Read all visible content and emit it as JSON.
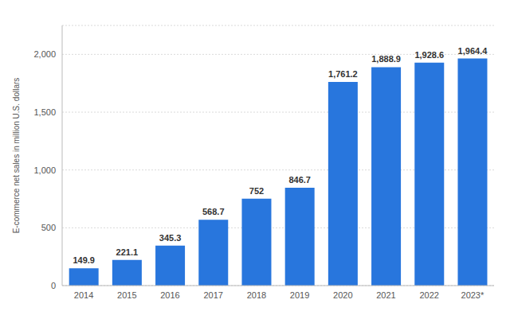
{
  "chart_data": {
    "type": "bar",
    "y_label": "E-commerce net sales in million U.S. dollars",
    "categories": [
      "2014",
      "2015",
      "2016",
      "2017",
      "2018",
      "2019",
      "2020",
      "2021",
      "2022",
      "2023*"
    ],
    "values": [
      149.9,
      221.1,
      345.3,
      568.7,
      752,
      846.7,
      1761.2,
      1888.9,
      1928.6,
      1964.4
    ],
    "value_labels": [
      "149.9",
      "221.1",
      "345.3",
      "568.7",
      "752",
      "846.7",
      "1,761.2",
      "1,888.9",
      "1,928.6",
      "1,964.4"
    ],
    "color": "#2876dd",
    "ylim": [
      0,
      2250
    ],
    "yticks": [
      0,
      500,
      {
        "value": 1000,
        "label": "1,000"
      },
      {
        "value": 1500,
        "label": "1,500"
      },
      {
        "value": 2000,
        "label": "2,000"
      }
    ],
    "grid": true,
    "data_labels": true
  }
}
